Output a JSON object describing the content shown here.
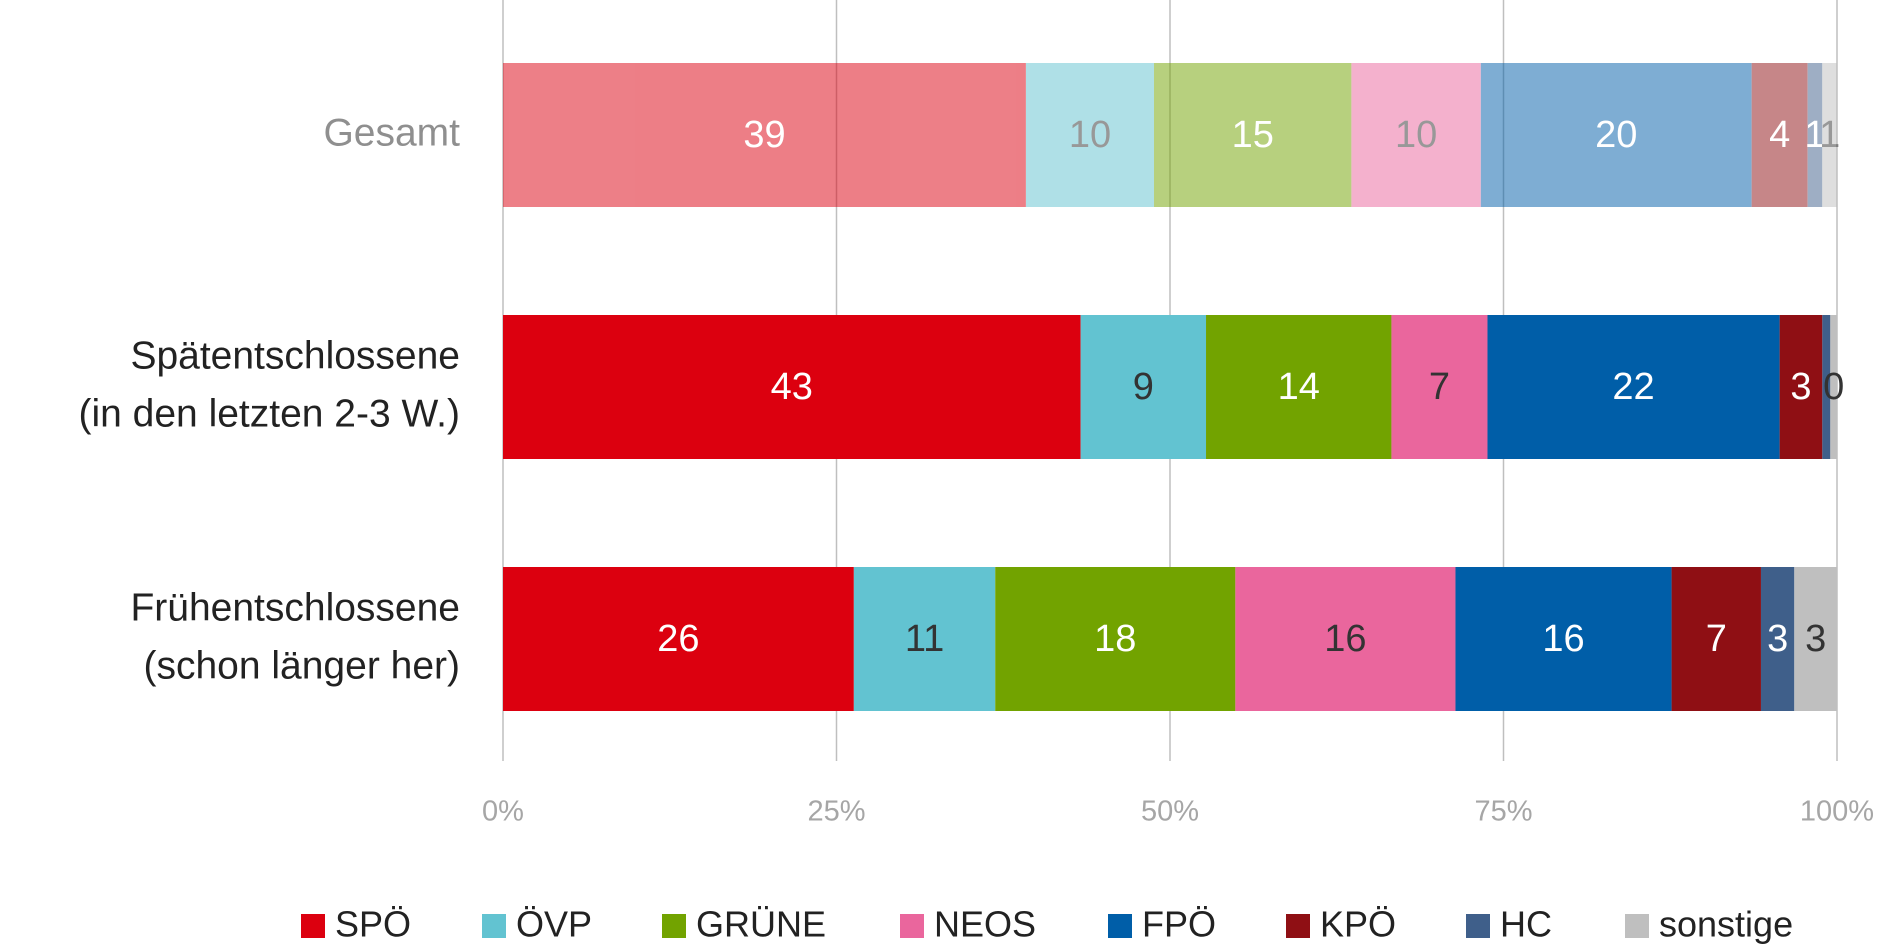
{
  "chart_data": {
    "type": "stacked_barh",
    "categories": [
      [
        "Gesamt"
      ],
      [
        "Spätentschlossene",
        "(in den letzten 2-3 W.)"
      ],
      [
        "Frühentschlossene",
        "(schon länger her)"
      ]
    ],
    "faded": [
      true,
      false,
      false
    ],
    "series": [
      {
        "name": "SPÖ",
        "color": "#dc000f",
        "label_color": "#ffffff",
        "values": [
          39.2,
          43.3,
          26.3
        ],
        "value_labels": [
          "39",
          "43",
          "26"
        ]
      },
      {
        "name": "ÖVP",
        "color": "#62c3d1",
        "label_color": "#333333",
        "values": [
          9.6,
          9.4,
          10.6
        ],
        "value_labels": [
          "10",
          "9",
          "11"
        ]
      },
      {
        "name": "GRÜNE",
        "color": "#72a300",
        "label_color": "#ffffff",
        "values": [
          14.8,
          13.9,
          18.0
        ],
        "value_labels": [
          "15",
          "14",
          "18"
        ]
      },
      {
        "name": "NEOS",
        "color": "#ea669d",
        "label_color": "#333333",
        "values": [
          9.7,
          7.2,
          16.5
        ],
        "value_labels": [
          "10",
          "7",
          "16"
        ]
      },
      {
        "name": "FPÖ",
        "color": "#005ea8",
        "label_color": "#ffffff",
        "values": [
          20.3,
          21.9,
          16.2
        ],
        "value_labels": [
          "20",
          "22",
          "16"
        ]
      },
      {
        "name": "KPÖ",
        "color": "#8f0f14",
        "label_color": "#ffffff",
        "values": [
          4.2,
          3.2,
          6.7
        ],
        "value_labels": [
          "4",
          "3",
          "7"
        ]
      },
      {
        "name": "HC",
        "color": "#3f5f8a",
        "label_color": "#ffffff",
        "values": [
          1.1,
          0.6,
          2.5
        ],
        "value_labels": [
          "1",
          null,
          "3"
        ]
      },
      {
        "name": "sonstige",
        "color": "#bfbfbf",
        "label_color": "#333333",
        "values": [
          1.1,
          0.5,
          3.2
        ],
        "value_labels": [
          "1",
          "0",
          "3"
        ]
      }
    ],
    "xlim": [
      0,
      100
    ],
    "xticks": [
      {
        "value": 0,
        "label": "0%"
      },
      {
        "value": 25,
        "label": "25%"
      },
      {
        "value": 50,
        "label": "50%"
      },
      {
        "value": 75,
        "label": "75%"
      },
      {
        "value": 100,
        "label": "100%"
      }
    ],
    "grid": true,
    "legend": "bottom"
  }
}
